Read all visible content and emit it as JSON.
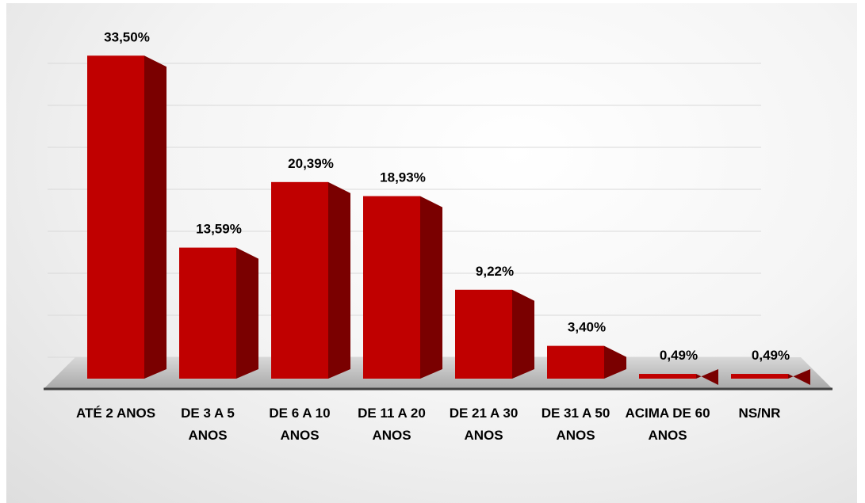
{
  "chart_data": {
    "type": "bar3d",
    "categories": [
      "ATÉ 2 ANOS",
      "DE 3 A 5 ANOS",
      "DE 6 A 10 ANOS",
      "DE 11 A 20 ANOS",
      "DE 21 A 30 ANOS",
      "DE 31 A 50 ANOS",
      "ACIMA DE 60 ANOS",
      "NS/NR"
    ],
    "values": [
      33.5,
      13.59,
      20.39,
      18.93,
      9.22,
      3.4,
      0.49,
      0.49
    ],
    "value_labels": [
      "33,50%",
      "13,59%",
      "20,39%",
      "18,93%",
      "9,22%",
      "3,40%",
      "0,49%",
      "0,49%"
    ],
    "color": "#c00000",
    "ylim": [
      0,
      35
    ],
    "yticks": [
      0,
      5,
      10,
      15,
      20,
      25,
      30,
      35
    ],
    "grid": true,
    "show_tick_labels": false
  }
}
